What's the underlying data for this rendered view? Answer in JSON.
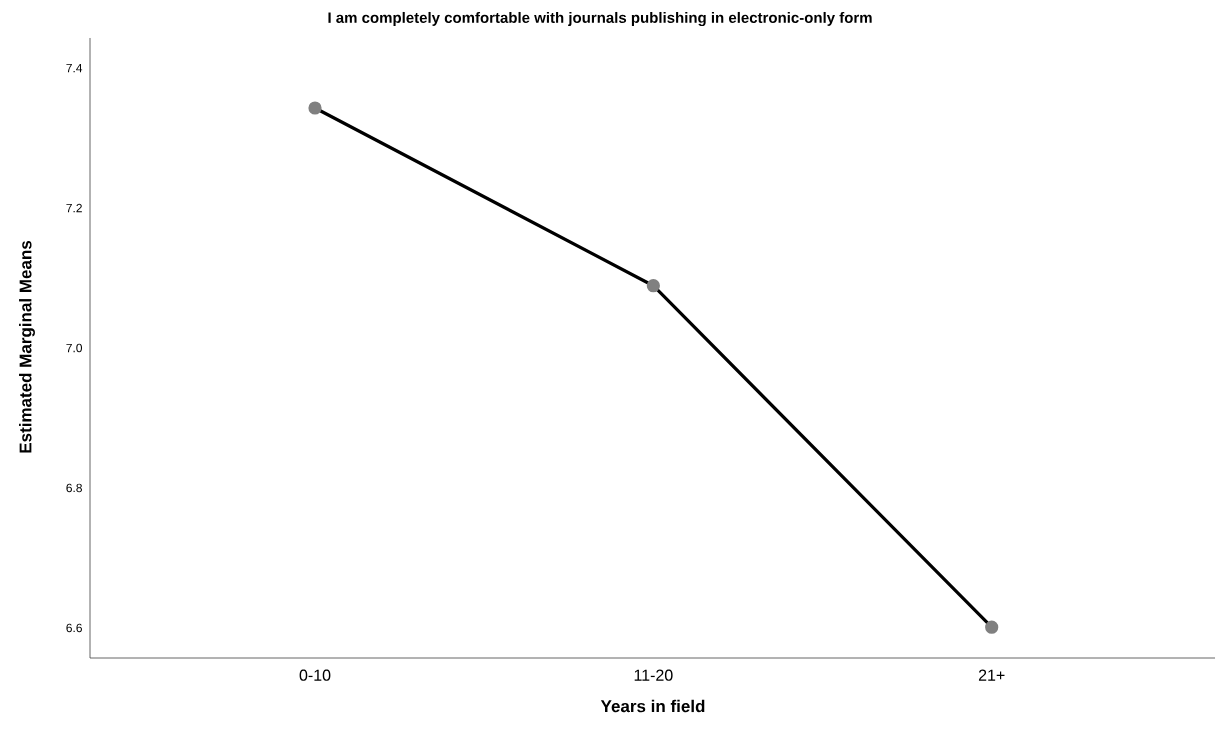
{
  "chart_data": {
    "type": "line",
    "title": "I am completely comfortable with journals publishing in electronic-only form",
    "xlabel": "Years in field",
    "ylabel": "Estimated Marginal Means",
    "categories": [
      "0-10",
      "11-20",
      "21+"
    ],
    "series": [
      {
        "color": "#000000",
        "values": [
          7.343,
          7.089,
          6.601
        ]
      }
    ],
    "ylim": [
      6.557,
      7.443
    ],
    "yticks": [
      6.6,
      6.8,
      {
        "value": 7,
        "label": "7.0"
      },
      7.2,
      7.4
    ],
    "marker": "circle",
    "line_style": "solid"
  }
}
